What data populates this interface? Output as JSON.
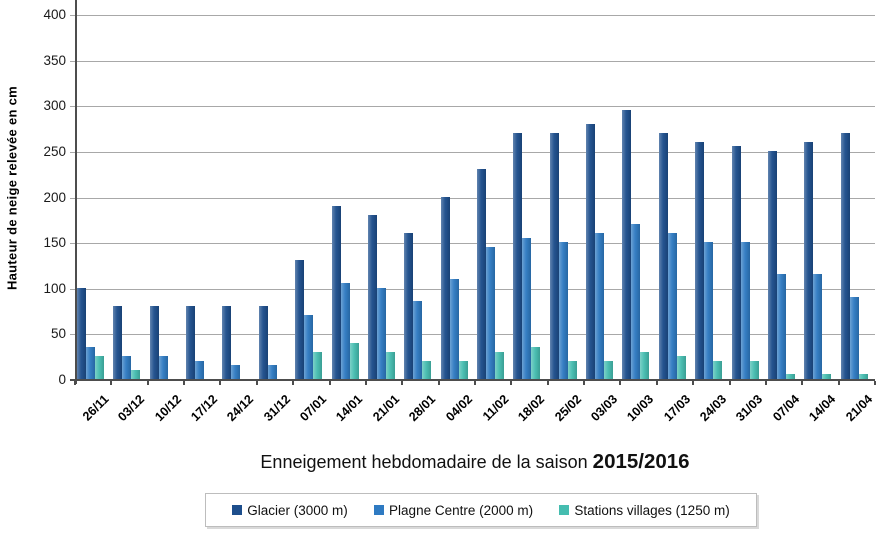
{
  "chart_data": {
    "type": "bar",
    "title": {
      "prefix": "Enneigement hebdomadaire de la saison",
      "season": "2015/2016"
    },
    "ylabel": "Hauteur de neige relevée en cm",
    "xlabel": "",
    "y_ticks": [
      0,
      50,
      100,
      150,
      200,
      250,
      300,
      350,
      400
    ],
    "ylim": [
      0,
      415
    ],
    "grid": true,
    "legend_position": "bottom",
    "categories": [
      "26/11",
      "03/12",
      "10/12",
      "17/12",
      "24/12",
      "31/12",
      "07/01",
      "14/01",
      "21/01",
      "28/01",
      "04/02",
      "11/02",
      "18/02",
      "25/02",
      "03/03",
      "10/03",
      "17/03",
      "24/03",
      "31/03",
      "07/04",
      "14/04",
      "21/04"
    ],
    "series": [
      {
        "name": "Glacier (3000 m)",
        "color": "#1D4E8C",
        "values": [
          100,
          80,
          80,
          80,
          80,
          80,
          130,
          190,
          180,
          160,
          200,
          230,
          270,
          270,
          280,
          295,
          270,
          260,
          255,
          250,
          260,
          270
        ]
      },
      {
        "name": "Plagne Centre (2000 m)",
        "color": "#2E7AC2",
        "values": [
          35,
          25,
          25,
          20,
          15,
          15,
          70,
          105,
          100,
          85,
          110,
          145,
          155,
          150,
          160,
          170,
          160,
          150,
          150,
          115,
          115,
          90
        ]
      },
      {
        "name": "Stations villages (1250 m)",
        "color": "#45BDB0",
        "values": [
          25,
          10,
          0,
          0,
          0,
          0,
          30,
          40,
          30,
          20,
          20,
          30,
          35,
          20,
          20,
          30,
          25,
          20,
          20,
          5,
          5,
          5
        ]
      }
    ]
  },
  "colors": {
    "gridline": "#A8A8A8",
    "axis": "#4D4D4D",
    "legend_border": "#BDBDBD",
    "background": "#FFFFFF"
  }
}
